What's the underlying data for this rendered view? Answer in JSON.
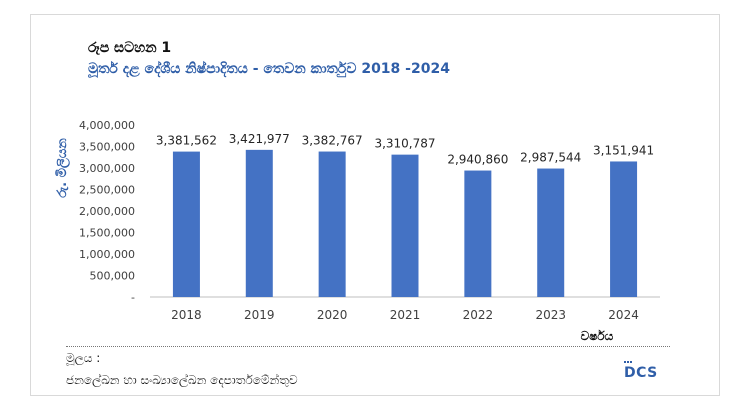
{
  "figure_label": "රූප සටහන 1",
  "figure_title": "මූර්ත දළ දේශීය නිෂ්පාදිතය - තෙවන කාර්තුව  2018 -2024",
  "chart_data": {
    "type": "bar",
    "categories": [
      "2018",
      "2019",
      "2020",
      "2021",
      "2022",
      "2023",
      "2024"
    ],
    "values": [
      3381562,
      3421977,
      3382767,
      3310787,
      2940860,
      2987544,
      3151941
    ],
    "data_labels": [
      "3,381,562",
      "3,421,977",
      "3,382,767",
      "3,310,787",
      "2,940,860",
      "2,987,544",
      "3,151,941"
    ],
    "ylabel": "රු. මිලියන",
    "xlabel": "වර්ෂය",
    "ylim": [
      0,
      4000000
    ],
    "yticks": [
      0,
      500000,
      1000000,
      1500000,
      2000000,
      2500000,
      3000000,
      3500000,
      4000000
    ],
    "ytick_labels": [
      "-",
      "500,000",
      "1,000,000",
      "1,500,000",
      "2,000,000",
      "2,500,000",
      "3,000,000",
      "3,500,000",
      "4,000,000"
    ],
    "grid": false,
    "bar_color": "#4472c4"
  },
  "source": {
    "label": "මූලය :",
    "text": "ජනලේඛන හා සංඛ්‍යාලේඛන දෙපාර්තමේන්තුව"
  },
  "logo": {
    "text": "DCS",
    "icon": "dcs-logo-icon"
  }
}
